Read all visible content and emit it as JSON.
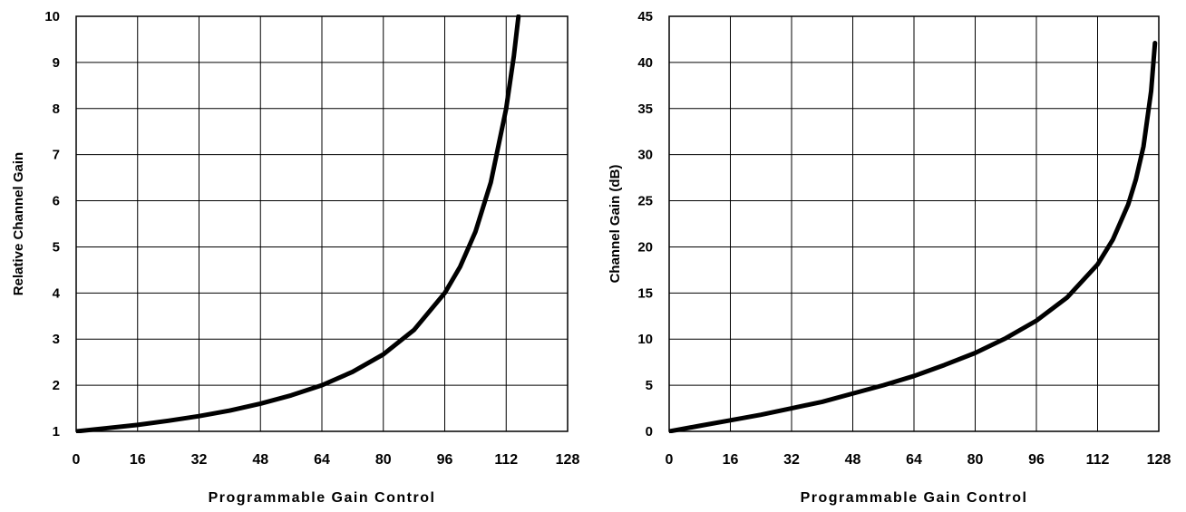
{
  "chart_data": [
    {
      "type": "line",
      "title": "",
      "xlabel": "Programmable Gain Control",
      "ylabel": "Relative Channel Gain",
      "xlim": [
        0,
        128
      ],
      "ylim": [
        1,
        10
      ],
      "xticks": [
        "0",
        "16",
        "32",
        "48",
        "64",
        "80",
        "96",
        "112",
        "128"
      ],
      "yticks": [
        "1",
        "2",
        "3",
        "4",
        "5",
        "6",
        "7",
        "8",
        "9",
        "10"
      ],
      "grid": true,
      "series": [
        {
          "x": [
            0,
            8,
            16,
            24,
            32,
            40,
            48,
            56,
            64,
            72,
            80,
            88,
            96,
            100,
            104,
            108,
            112,
            114,
            115.2
          ],
          "y": [
            1.0,
            1.07,
            1.14,
            1.23,
            1.33,
            1.45,
            1.6,
            1.78,
            2.0,
            2.29,
            2.67,
            3.2,
            4.0,
            4.57,
            5.33,
            6.4,
            8.0,
            9.14,
            10.0
          ]
        }
      ]
    },
    {
      "type": "line",
      "title": "",
      "xlabel": "Programmable Gain Control",
      "ylabel": "Channel Gain (dB)",
      "xlim": [
        0,
        128
      ],
      "ylim": [
        0,
        45
      ],
      "xticks": [
        "0",
        "16",
        "32",
        "48",
        "64",
        "80",
        "96",
        "112",
        "128"
      ],
      "yticks": [
        "0",
        "5",
        "10",
        "15",
        "20",
        "25",
        "30",
        "35",
        "40",
        "45"
      ],
      "grid": true,
      "series": [
        {
          "x": [
            0,
            8,
            16,
            24,
            32,
            40,
            48,
            56,
            64,
            72,
            80,
            88,
            96,
            104,
            112,
            116,
            120,
            122,
            124,
            126,
            127
          ],
          "y": [
            0.0,
            0.6,
            1.2,
            1.8,
            2.5,
            3.2,
            4.1,
            5.0,
            6.0,
            7.2,
            8.5,
            10.1,
            12.0,
            14.5,
            18.1,
            20.8,
            24.6,
            27.3,
            30.9,
            36.9,
            42.1
          ]
        }
      ]
    }
  ]
}
